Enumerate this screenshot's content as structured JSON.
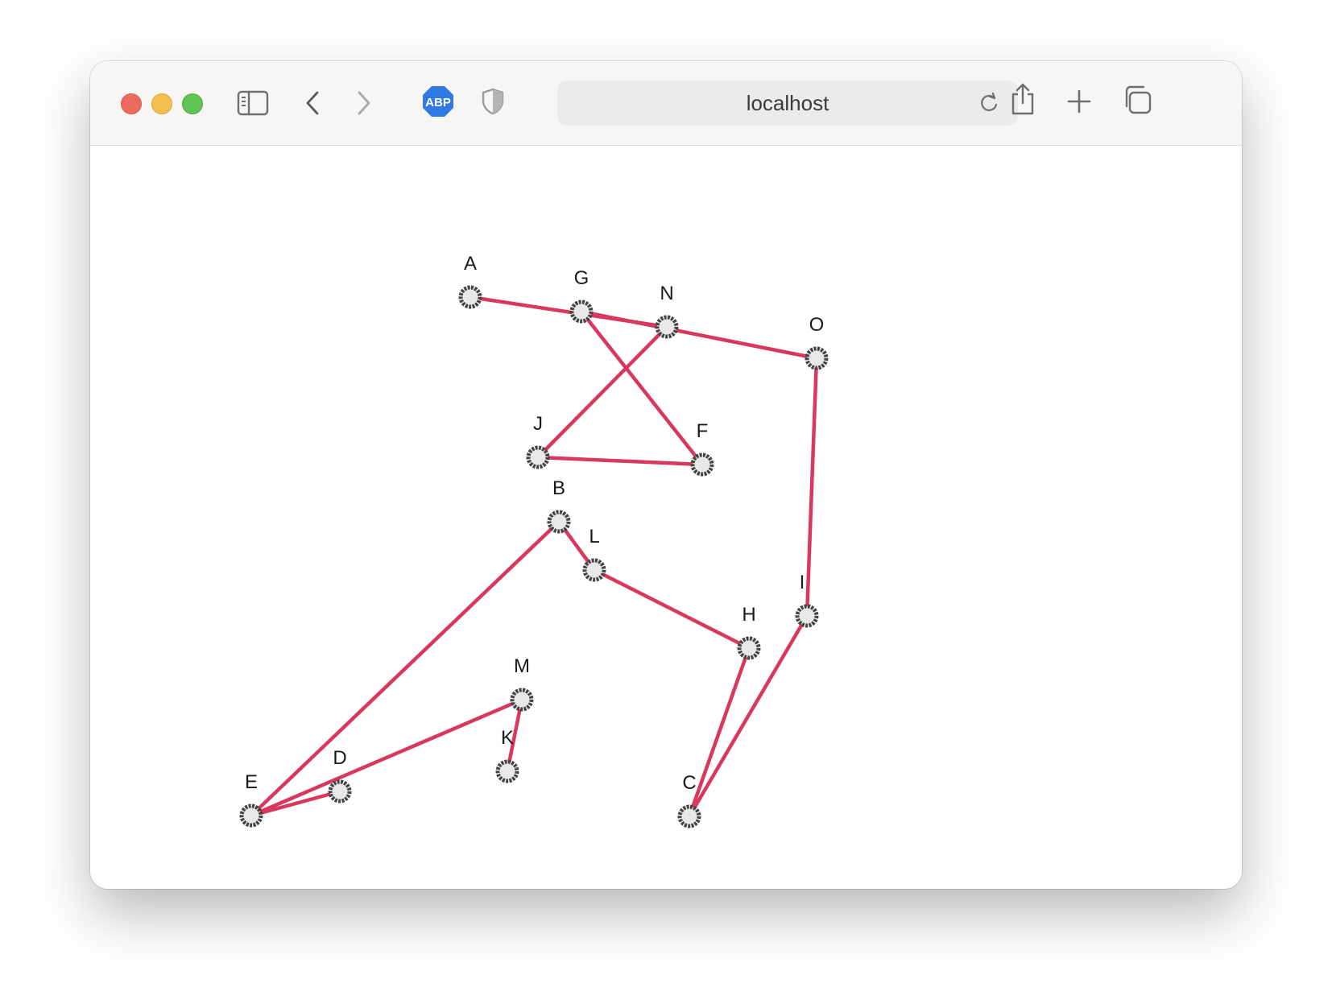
{
  "browser": {
    "address": "localhost",
    "adblock_label": "ABP",
    "colors": {
      "close": "#ed6a5e",
      "minimize": "#f5bf4f",
      "maximize": "#61c554",
      "adblock": "#2f7ae5",
      "edge": "#d9385e",
      "node_fill": "#e8e8e8",
      "node_stroke": "#444444"
    },
    "icons": [
      "sidebar-icon",
      "back-icon",
      "forward-icon",
      "adblock-icon",
      "shield-icon",
      "reload-icon",
      "share-icon",
      "new-tab-icon",
      "tabs-overview-icon"
    ]
  },
  "graph": {
    "nodes": [
      {
        "id": "A",
        "label": "A"
      },
      {
        "id": "G",
        "label": "G"
      },
      {
        "id": "N",
        "label": "N"
      },
      {
        "id": "O",
        "label": "O"
      },
      {
        "id": "J",
        "label": "J"
      },
      {
        "id": "F",
        "label": "F"
      },
      {
        "id": "B",
        "label": "B"
      },
      {
        "id": "L",
        "label": "L"
      },
      {
        "id": "I",
        "label": "I"
      },
      {
        "id": "H",
        "label": "H"
      },
      {
        "id": "M",
        "label": "M"
      },
      {
        "id": "K",
        "label": "K"
      },
      {
        "id": "D",
        "label": "D"
      },
      {
        "id": "E",
        "label": "E"
      },
      {
        "id": "C",
        "label": "C"
      }
    ],
    "edges": [
      [
        "A",
        "N"
      ],
      [
        "G",
        "O"
      ],
      [
        "G",
        "F"
      ],
      [
        "N",
        "J"
      ],
      [
        "J",
        "F"
      ],
      [
        "O",
        "I"
      ],
      [
        "I",
        "C"
      ],
      [
        "B",
        "L"
      ],
      [
        "L",
        "H"
      ],
      [
        "H",
        "C"
      ],
      [
        "B",
        "E"
      ],
      [
        "E",
        "D"
      ],
      [
        "E",
        "M"
      ],
      [
        "M",
        "K"
      ]
    ]
  }
}
